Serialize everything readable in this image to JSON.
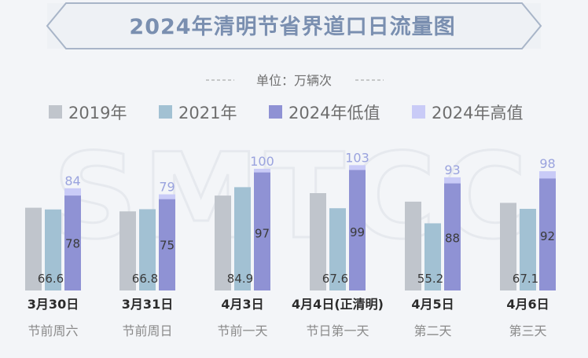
{
  "title": "2024年清明节省界道口日流量图",
  "unit_label": "单位：万辆次",
  "watermark": "SMTCC",
  "colors": {
    "background": "#f3f5f8",
    "title_box_border": "#a8b5c8",
    "s2019": "#c0c5cc",
    "s2021": "#a2c1d3",
    "s2024low": "#8f92d4",
    "s2024high": "#c9cbf7"
  },
  "chart_data": {
    "type": "bar",
    "title": "2024年清明节省界道口日流量图",
    "ylabel": "",
    "ylim": [
      0,
      110
    ],
    "grid": false,
    "legend_position": "top",
    "categories": [
      "3月30日",
      "3月31日",
      "4月3日",
      "4月4日(正清明)",
      "4月5日",
      "4月6日"
    ],
    "category_sublabels": [
      "节前周六",
      "节前周日",
      "节前一天",
      "节日第一天",
      "第二天",
      "第三天"
    ],
    "series": [
      {
        "name": "2019年",
        "values": [
          68,
          65,
          78,
          80,
          73,
          72
        ]
      },
      {
        "name": "2021年",
        "values": [
          66.6,
          66.8,
          84.9,
          67.6,
          55.2,
          67.1
        ]
      },
      {
        "name": "2024年低值",
        "values": [
          78,
          75,
          97,
          99,
          88,
          92
        ]
      },
      {
        "name": "2024年高值",
        "values": [
          84,
          79,
          100,
          103,
          93,
          98
        ]
      }
    ]
  }
}
